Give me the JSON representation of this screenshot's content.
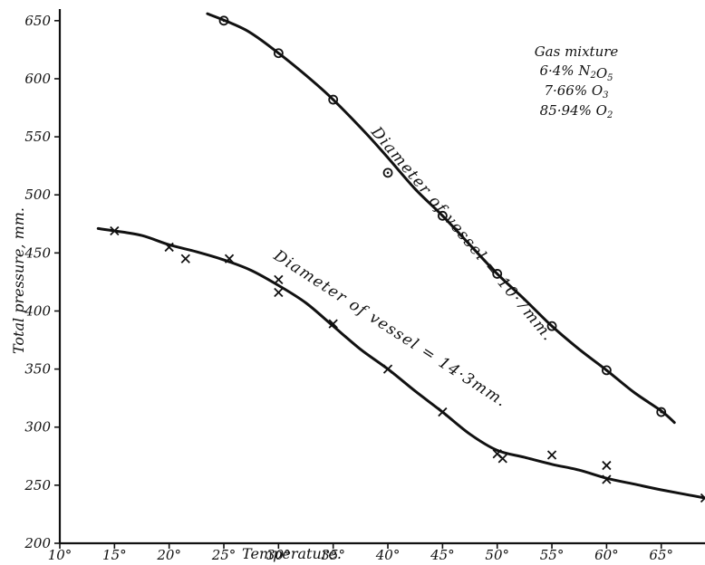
{
  "chart_data": {
    "type": "line",
    "xlabel": "Temperature.",
    "ylabel": "Total pressure, mm.",
    "xlim": [
      10,
      69
    ],
    "ylim": [
      200,
      660
    ],
    "x_ticks": [
      "10°",
      "15°",
      "20°",
      "25°",
      "30°",
      "35°",
      "40°",
      "45°",
      "50°",
      "55°",
      "60°",
      "65°"
    ],
    "y_ticks": [
      "200",
      "250",
      "300",
      "350",
      "400",
      "450",
      "500",
      "550",
      "600",
      "650"
    ],
    "grid": false,
    "series": [
      {
        "name": "Diameter of vessel = 10.7mm.",
        "label_text": "Diameter of vessel = 10·7mm.",
        "marker": "circle-dot",
        "points": [
          {
            "x": 25,
            "y": 650
          },
          {
            "x": 30,
            "y": 622
          },
          {
            "x": 35,
            "y": 582
          },
          {
            "x": 40,
            "y": 519
          },
          {
            "x": 45,
            "y": 482
          },
          {
            "x": 50,
            "y": 432
          },
          {
            "x": 55,
            "y": 387
          },
          {
            "x": 60,
            "y": 349
          },
          {
            "x": 65,
            "y": 313
          }
        ],
        "curve": [
          {
            "x": 23.5,
            "y": 656
          },
          {
            "x": 27,
            "y": 642
          },
          {
            "x": 30,
            "y": 622
          },
          {
            "x": 33,
            "y": 599
          },
          {
            "x": 35,
            "y": 582
          },
          {
            "x": 38,
            "y": 553
          },
          {
            "x": 40,
            "y": 532
          },
          {
            "x": 42.5,
            "y": 505
          },
          {
            "x": 45,
            "y": 482
          },
          {
            "x": 47.5,
            "y": 457
          },
          {
            "x": 50,
            "y": 432
          },
          {
            "x": 52.5,
            "y": 410
          },
          {
            "x": 55,
            "y": 387
          },
          {
            "x": 57.5,
            "y": 367
          },
          {
            "x": 60,
            "y": 349
          },
          {
            "x": 62.5,
            "y": 330
          },
          {
            "x": 65,
            "y": 314
          },
          {
            "x": 66.2,
            "y": 304
          }
        ]
      },
      {
        "name": "Diameter of vessel = 14.3mm.",
        "label_text": "Diameter of vessel = 14·3mm.",
        "marker": "x",
        "points": [
          {
            "x": 15,
            "y": 469
          },
          {
            "x": 20,
            "y": 455
          },
          {
            "x": 21.5,
            "y": 445
          },
          {
            "x": 25.5,
            "y": 445
          },
          {
            "x": 30,
            "y": 427
          },
          {
            "x": 30,
            "y": 416
          },
          {
            "x": 35,
            "y": 389
          },
          {
            "x": 40,
            "y": 350
          },
          {
            "x": 45,
            "y": 313
          },
          {
            "x": 50,
            "y": 277
          },
          {
            "x": 50.5,
            "y": 273
          },
          {
            "x": 55,
            "y": 276
          },
          {
            "x": 60,
            "y": 267
          },
          {
            "x": 60,
            "y": 255
          },
          {
            "x": 69,
            "y": 239
          }
        ],
        "curve": [
          {
            "x": 13.5,
            "y": 471
          },
          {
            "x": 15,
            "y": 469
          },
          {
            "x": 17.5,
            "y": 465
          },
          {
            "x": 20,
            "y": 457
          },
          {
            "x": 22.5,
            "y": 451
          },
          {
            "x": 25,
            "y": 444
          },
          {
            "x": 27.5,
            "y": 435
          },
          {
            "x": 30,
            "y": 422
          },
          {
            "x": 32.5,
            "y": 407
          },
          {
            "x": 35,
            "y": 387
          },
          {
            "x": 37.5,
            "y": 367
          },
          {
            "x": 40,
            "y": 350
          },
          {
            "x": 42.5,
            "y": 331
          },
          {
            "x": 45,
            "y": 313
          },
          {
            "x": 47.5,
            "y": 294
          },
          {
            "x": 50,
            "y": 280
          },
          {
            "x": 52.5,
            "y": 274
          },
          {
            "x": 55,
            "y": 268
          },
          {
            "x": 57.5,
            "y": 263
          },
          {
            "x": 60,
            "y": 256
          },
          {
            "x": 62.5,
            "y": 251
          },
          {
            "x": 65,
            "y": 246
          },
          {
            "x": 69,
            "y": 239
          }
        ]
      }
    ],
    "annotation": {
      "title": "Gas mixture",
      "lines": [
        {
          "value": "6·4%",
          "formula": "N",
          "sub1": "2",
          "mid": "O",
          "sub2": "5"
        },
        {
          "value": "7·66%",
          "formula": "O",
          "sub1": "3",
          "mid": "",
          "sub2": ""
        },
        {
          "value": "85·94%",
          "formula": "O",
          "sub1": "2",
          "mid": "",
          "sub2": ""
        }
      ]
    }
  }
}
